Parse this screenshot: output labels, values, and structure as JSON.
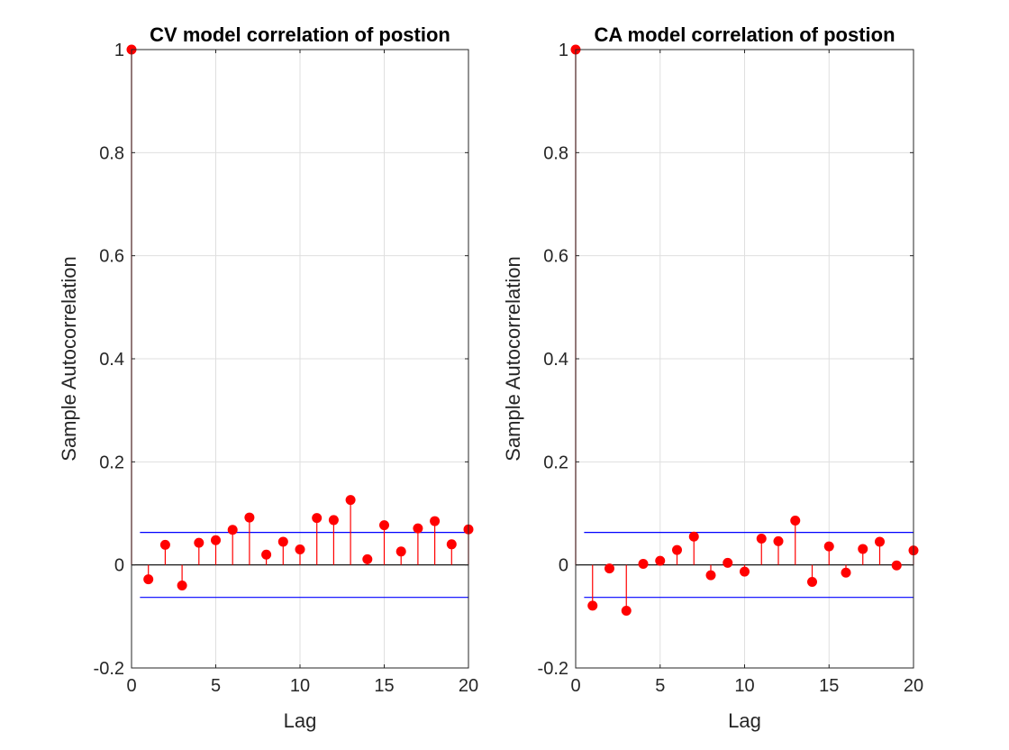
{
  "chart_data": [
    {
      "type": "stem",
      "title": "CV model correlation of postion",
      "xlabel": "Lag",
      "ylabel": "Sample Autocorrelation",
      "xlim": [
        0,
        20
      ],
      "ylim": [
        -0.2,
        1
      ],
      "xticks": [
        "0",
        "5",
        "10",
        "15",
        "20"
      ],
      "yticks": [
        "-0.2",
        "0",
        "0.2",
        "0.4",
        "0.6",
        "0.8",
        "1"
      ],
      "grid": true,
      "x": [
        0,
        1,
        2,
        3,
        4,
        5,
        6,
        7,
        8,
        9,
        10,
        11,
        12,
        13,
        14,
        15,
        16,
        17,
        18,
        19,
        20
      ],
      "values": [
        1,
        -0.028,
        0.039,
        -0.04,
        0.043,
        0.048,
        0.068,
        0.092,
        0.02,
        0.045,
        0.03,
        0.091,
        0.087,
        0.126,
        0.011,
        0.077,
        0.026,
        0.071,
        0.085,
        0.04,
        0.069
      ],
      "confidence_bounds": [
        0.063,
        -0.063
      ],
      "colors": {
        "stem": "#ff0000",
        "bounds": "#0000ff",
        "zero": "#000000"
      }
    },
    {
      "type": "stem",
      "title": "CA model correlation of postion",
      "xlabel": "Lag",
      "ylabel": "Sample Autocorrelation",
      "xlim": [
        0,
        20
      ],
      "ylim": [
        -0.2,
        1
      ],
      "xticks": [
        "0",
        "5",
        "10",
        "15",
        "20"
      ],
      "yticks": [
        "-0.2",
        "0",
        "0.2",
        "0.4",
        "0.6",
        "0.8",
        "1"
      ],
      "grid": true,
      "x": [
        0,
        1,
        2,
        3,
        4,
        5,
        6,
        7,
        8,
        9,
        10,
        11,
        12,
        13,
        14,
        15,
        16,
        17,
        18,
        19,
        20
      ],
      "values": [
        1,
        -0.079,
        -0.007,
        -0.089,
        0.002,
        0.008,
        0.029,
        0.055,
        -0.02,
        0.004,
        -0.013,
        0.051,
        0.046,
        0.086,
        -0.033,
        0.036,
        -0.015,
        0.031,
        0.045,
        -0.001,
        0.028
      ],
      "confidence_bounds": [
        0.063,
        -0.063
      ],
      "colors": {
        "stem": "#ff0000",
        "bounds": "#0000ff",
        "zero": "#000000"
      }
    }
  ]
}
